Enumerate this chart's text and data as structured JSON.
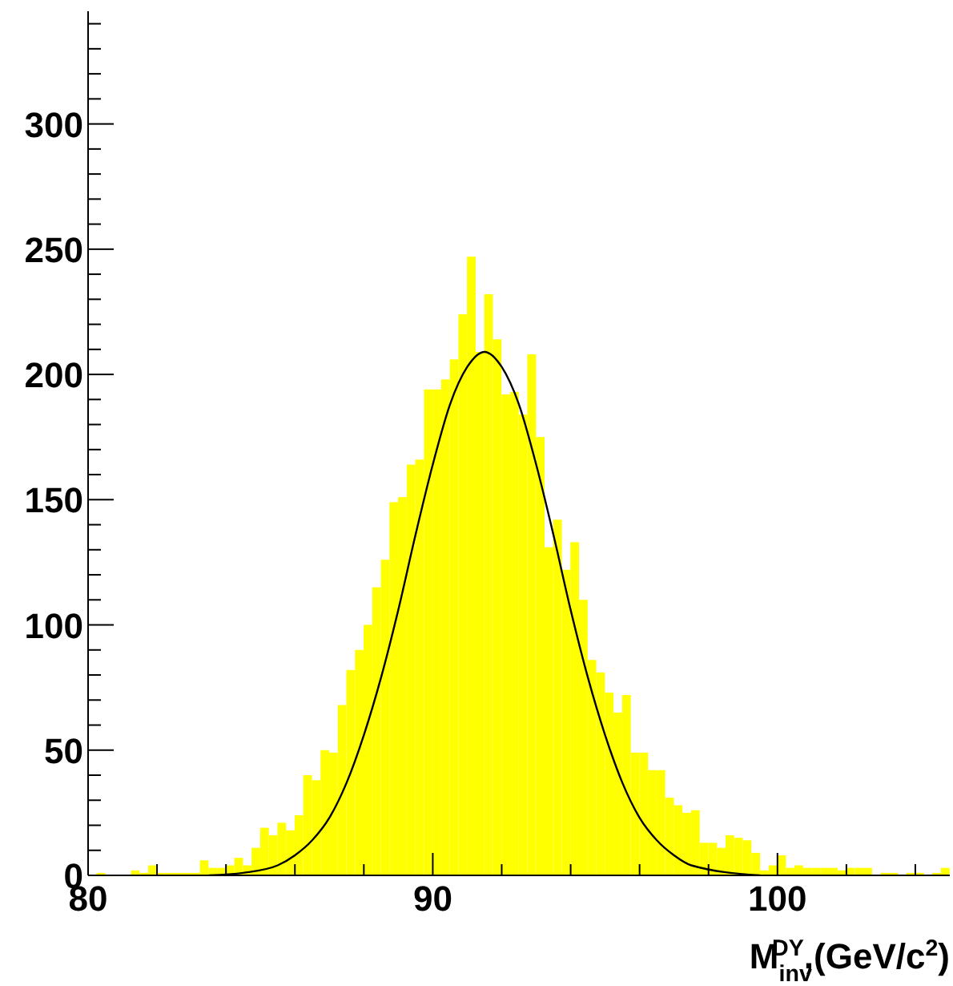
{
  "chart_data": {
    "type": "histogram",
    "xlabel": "M$_{inv}$$^{DY}$,(GeV/c$^{2}$)",
    "color": "#ffff00",
    "bins": [
      80,
      80.25,
      80.5,
      80.75,
      81,
      81.25,
      81.5,
      81.75,
      82,
      82.25,
      82.5,
      82.75,
      83,
      83.25,
      83.5,
      83.75,
      84,
      84.25,
      84.5,
      84.75,
      85,
      85.25,
      85.5,
      85.75,
      86,
      86.25,
      86.5,
      86.75,
      87,
      87.25,
      87.5,
      87.75,
      88,
      88.25,
      88.5,
      88.75,
      89,
      89.25,
      89.5,
      89.75,
      90,
      90.25,
      90.5,
      90.75,
      91,
      91.25,
      91.5,
      91.75,
      92,
      92.25,
      92.5,
      92.75,
      93,
      93.25,
      93.5,
      93.75,
      94,
      94.25,
      94.5,
      94.75,
      95,
      95.25,
      95.5,
      95.75,
      96,
      96.25,
      96.5,
      96.75,
      97,
      97.25,
      97.5,
      97.75,
      98,
      98.25,
      98.5,
      98.75,
      99,
      99.25,
      99.5,
      99.75,
      100,
      100.25,
      100.5,
      100.75,
      101,
      101.25,
      101.5,
      101.75,
      102,
      102.25,
      102.5,
      102.75,
      103,
      103.25,
      103.5,
      103.75,
      104,
      104.25,
      104.5,
      104.75,
      105
    ],
    "values": [
      0,
      1,
      0,
      0,
      0,
      2,
      1,
      4,
      1,
      1,
      1,
      1,
      1,
      6,
      3,
      3,
      4,
      7,
      4,
      11,
      19,
      16,
      21,
      18,
      24,
      40,
      38,
      50,
      49,
      68,
      82,
      90,
      100,
      115,
      126,
      149,
      151,
      164,
      166,
      194,
      194,
      198,
      206,
      224,
      247,
      209,
      232,
      214,
      192,
      193,
      184,
      208,
      175,
      131,
      142,
      122,
      133,
      110,
      86,
      81,
      73,
      65,
      72,
      49,
      49,
      42,
      42,
      31,
      28,
      25,
      26,
      13,
      13,
      11,
      16,
      15,
      14,
      9,
      2,
      4,
      8,
      3,
      4,
      3,
      3,
      3,
      3,
      2,
      3,
      3,
      3,
      0,
      1,
      1,
      0,
      1,
      1,
      0,
      1,
      3
    ],
    "series": [
      {
        "type": "line",
        "color": "#000000",
        "x": [
          83.5,
          84.5,
          85.5,
          86,
          86.5,
          87,
          87.5,
          88,
          88.5,
          89,
          89.5,
          90,
          90.5,
          91,
          91.5,
          92,
          92.5,
          93,
          93.5,
          94,
          94.5,
          95,
          95.5,
          96,
          96.5,
          97,
          97.5,
          99.5
        ],
        "values": [
          0,
          1,
          4,
          8,
          14,
          23,
          37,
          56,
          79,
          106,
          136,
          164,
          188,
          203,
          209,
          203,
          188,
          164,
          136,
          106,
          79,
          56,
          37,
          23,
          14,
          8,
          4,
          0
        ]
      }
    ],
    "xlim": [
      80,
      105
    ],
    "xticks": [
      80,
      {
        "value": 82,
        "label": null
      },
      {
        "value": 84,
        "label": null
      },
      {
        "value": 86,
        "label": null
      },
      {
        "value": 88,
        "label": null
      },
      90,
      {
        "value": 92,
        "label": null
      },
      {
        "value": 94,
        "label": null
      },
      {
        "value": 96,
        "label": null
      },
      {
        "value": 98,
        "label": null
      },
      100,
      {
        "value": 102,
        "label": null
      },
      {
        "value": 104,
        "label": null
      }
    ],
    "ylim": [
      0,
      345
    ],
    "yticks": [
      0,
      {
        "value": 10,
        "label": null
      },
      {
        "value": 20,
        "label": null
      },
      {
        "value": 30,
        "label": null
      },
      {
        "value": 40,
        "label": null
      },
      50,
      {
        "value": 60,
        "label": null
      },
      {
        "value": 70,
        "label": null
      },
      {
        "value": 80,
        "label": null
      },
      {
        "value": 90,
        "label": null
      },
      100,
      {
        "value": 110,
        "label": null
      },
      {
        "value": 120,
        "label": null
      },
      {
        "value": 130,
        "label": null
      },
      {
        "value": 140,
        "label": null
      },
      150,
      {
        "value": 160,
        "label": null
      },
      {
        "value": 170,
        "label": null
      },
      {
        "value": 180,
        "label": null
      },
      {
        "value": 190,
        "label": null
      },
      200,
      {
        "value": 210,
        "label": null
      },
      {
        "value": 220,
        "label": null
      },
      {
        "value": 230,
        "label": null
      },
      {
        "value": 240,
        "label": null
      },
      250,
      {
        "value": 260,
        "label": null
      },
      {
        "value": 270,
        "label": null
      },
      {
        "value": 280,
        "label": null
      },
      {
        "value": 290,
        "label": null
      },
      300,
      {
        "value": 310,
        "label": null
      },
      {
        "value": 320,
        "label": null
      },
      {
        "value": 330,
        "label": null
      },
      {
        "value": 340,
        "label": null
      }
    ]
  }
}
